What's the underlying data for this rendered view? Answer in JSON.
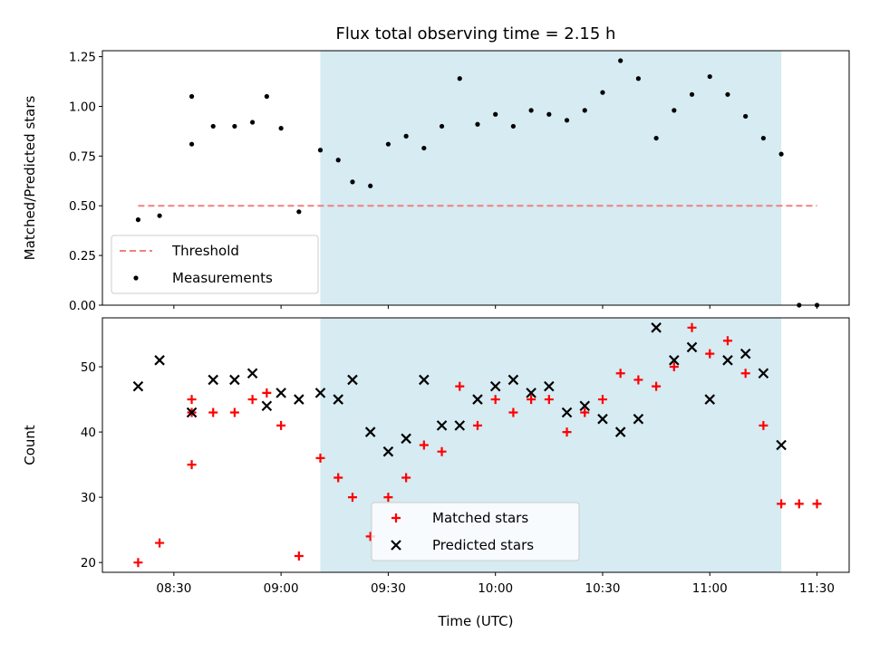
{
  "chart_data": {
    "title": "Flux total observing time = 2.15 h",
    "xlabel": "Time (UTC)",
    "x_tick_labels": [
      "08:30",
      "09:00",
      "09:30",
      "10:00",
      "10:30",
      "11:00",
      "11:30"
    ],
    "x_tick_times": [
      "08:30",
      "09:00",
      "09:30",
      "10:00",
      "10:30",
      "11:00",
      "11:30"
    ],
    "xlim": [
      "08:10",
      "11:39"
    ],
    "shaded_interval": {
      "start": "09:11",
      "end": "11:20",
      "color": "#add8e6"
    },
    "panels": [
      {
        "type": "scatter",
        "ylabel": "Matched/Predicted stars",
        "ylim": [
          0,
          1.28
        ],
        "y_ticks": [
          "0.00",
          "0.25",
          "0.50",
          "0.75",
          "1.00",
          "1.25"
        ],
        "threshold": {
          "name": "Threshold",
          "value": 0.5,
          "x_range": [
            "08:20",
            "11:30"
          ],
          "color": "#f08080",
          "style": "dashed"
        },
        "series": [
          {
            "name": "Measurements",
            "color": "#000000",
            "marker": "dot",
            "points": [
              [
                "08:20",
                0.43
              ],
              [
                "08:26",
                0.45
              ],
              [
                "08:35",
                0.81
              ],
              [
                "08:35",
                1.05
              ],
              [
                "08:41",
                0.9
              ],
              [
                "08:47",
                0.9
              ],
              [
                "08:52",
                0.92
              ],
              [
                "08:56",
                1.05
              ],
              [
                "09:00",
                0.89
              ],
              [
                "09:05",
                0.47
              ],
              [
                "09:11",
                0.78
              ],
              [
                "09:16",
                0.73
              ],
              [
                "09:20",
                0.62
              ],
              [
                "09:25",
                0.6
              ],
              [
                "09:30",
                0.81
              ],
              [
                "09:35",
                0.85
              ],
              [
                "09:40",
                0.79
              ],
              [
                "09:45",
                0.9
              ],
              [
                "09:50",
                1.14
              ],
              [
                "09:55",
                0.91
              ],
              [
                "10:00",
                0.96
              ],
              [
                "10:05",
                0.9
              ],
              [
                "10:10",
                0.98
              ],
              [
                "10:15",
                0.96
              ],
              [
                "10:20",
                0.93
              ],
              [
                "10:25",
                0.98
              ],
              [
                "10:30",
                1.07
              ],
              [
                "10:35",
                1.23
              ],
              [
                "10:40",
                1.14
              ],
              [
                "10:45",
                0.84
              ],
              [
                "10:50",
                0.98
              ],
              [
                "10:55",
                1.06
              ],
              [
                "11:00",
                1.15
              ],
              [
                "11:05",
                1.06
              ],
              [
                "11:10",
                0.95
              ],
              [
                "11:15",
                0.84
              ],
              [
                "11:20",
                0.76
              ],
              [
                "11:25",
                0.0
              ],
              [
                "11:30",
                0.0
              ]
            ]
          }
        ],
        "legend": {
          "location": "lower left",
          "entries": [
            "Threshold",
            "Measurements"
          ]
        }
      },
      {
        "type": "scatter",
        "ylabel": "Count",
        "ylim": [
          18.5,
          57.5
        ],
        "y_ticks": [
          "20",
          "30",
          "40",
          "50"
        ],
        "series": [
          {
            "name": "Matched stars",
            "color": "#ff0000",
            "marker": "plus",
            "points": [
              [
                "08:20",
                20
              ],
              [
                "08:26",
                23
              ],
              [
                "08:35",
                35
              ],
              [
                "08:35",
                43
              ],
              [
                "08:35",
                45
              ],
              [
                "08:41",
                43
              ],
              [
                "08:47",
                43
              ],
              [
                "08:52",
                45
              ],
              [
                "08:56",
                46
              ],
              [
                "09:00",
                41
              ],
              [
                "09:05",
                21
              ],
              [
                "09:11",
                36
              ],
              [
                "09:16",
                33
              ],
              [
                "09:20",
                30
              ],
              [
                "09:25",
                24
              ],
              [
                "09:30",
                30
              ],
              [
                "09:35",
                33
              ],
              [
                "09:40",
                38
              ],
              [
                "09:45",
                37
              ],
              [
                "09:50",
                47
              ],
              [
                "09:55",
                41
              ],
              [
                "10:00",
                45
              ],
              [
                "10:05",
                43
              ],
              [
                "10:10",
                45
              ],
              [
                "10:15",
                45
              ],
              [
                "10:20",
                40
              ],
              [
                "10:25",
                43
              ],
              [
                "10:30",
                45
              ],
              [
                "10:35",
                49
              ],
              [
                "10:40",
                48
              ],
              [
                "10:45",
                47
              ],
              [
                "10:50",
                50
              ],
              [
                "10:55",
                56
              ],
              [
                "11:00",
                52
              ],
              [
                "11:05",
                54
              ],
              [
                "11:10",
                49
              ],
              [
                "11:15",
                41
              ],
              [
                "11:20",
                29
              ],
              [
                "11:25",
                29
              ],
              [
                "11:30",
                29
              ]
            ]
          },
          {
            "name": "Predicted stars",
            "color": "#000000",
            "marker": "x",
            "points": [
              [
                "08:20",
                47
              ],
              [
                "08:26",
                51
              ],
              [
                "08:35",
                43
              ],
              [
                "08:41",
                48
              ],
              [
                "08:47",
                48
              ],
              [
                "08:52",
                49
              ],
              [
                "08:56",
                44
              ],
              [
                "09:00",
                46
              ],
              [
                "09:05",
                45
              ],
              [
                "09:11",
                46
              ],
              [
                "09:16",
                45
              ],
              [
                "09:20",
                48
              ],
              [
                "09:25",
                40
              ],
              [
                "09:30",
                37
              ],
              [
                "09:35",
                39
              ],
              [
                "09:40",
                48
              ],
              [
                "09:45",
                41
              ],
              [
                "09:50",
                41
              ],
              [
                "09:55",
                45
              ],
              [
                "10:00",
                47
              ],
              [
                "10:05",
                48
              ],
              [
                "10:10",
                46
              ],
              [
                "10:15",
                47
              ],
              [
                "10:20",
                43
              ],
              [
                "10:25",
                44
              ],
              [
                "10:30",
                42
              ],
              [
                "10:35",
                40
              ],
              [
                "10:40",
                42
              ],
              [
                "10:45",
                56
              ],
              [
                "10:50",
                51
              ],
              [
                "10:55",
                53
              ],
              [
                "11:00",
                45
              ],
              [
                "11:05",
                51
              ],
              [
                "11:10",
                52
              ],
              [
                "11:15",
                49
              ],
              [
                "11:20",
                38
              ]
            ]
          }
        ],
        "legend": {
          "location": "lower center",
          "entries": [
            "Matched stars",
            "Predicted stars"
          ]
        }
      }
    ]
  }
}
